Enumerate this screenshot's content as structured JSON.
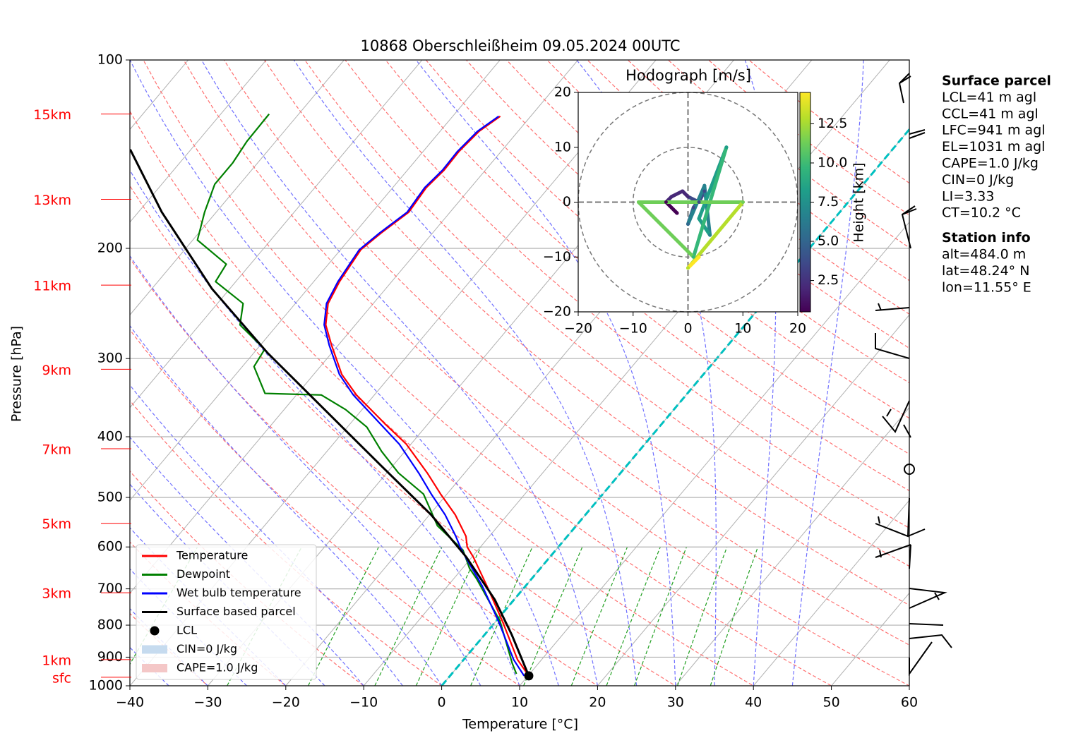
{
  "chart_data": [
    {
      "type": "skewt",
      "title": "10868 Oberschleißheim 09.05.2024 00UTC",
      "xlabel": "Temperature [°C]",
      "ylabel": "Pressure [hPa]",
      "xlim": [
        -40,
        60
      ],
      "ylim": [
        1000,
        100
      ],
      "ylog": true,
      "grid": true,
      "xticks": [
        {
          "value": -40,
          "label": "−40"
        },
        {
          "value": -30,
          "label": "−30"
        },
        {
          "value": -20,
          "label": "−20"
        },
        {
          "value": -10,
          "label": "−10"
        },
        0,
        10,
        20,
        30,
        40,
        50,
        60
      ],
      "yticks": [
        100,
        200,
        300,
        400,
        500,
        600,
        700,
        800,
        900,
        1000
      ],
      "height_labels": [
        {
          "value": 122,
          "label": "15km"
        },
        {
          "value": 167,
          "label": "13km"
        },
        {
          "value": 229,
          "label": "11km"
        },
        {
          "value": 312,
          "label": "9km"
        },
        {
          "value": 418,
          "label": "7km"
        },
        {
          "value": 550,
          "label": "5km"
        },
        {
          "value": 710,
          "label": "3km"
        },
        {
          "value": 908,
          "label": "1km"
        },
        {
          "value": 969,
          "label": "sfc"
        }
      ],
      "height_label_color": "#ff0000",
      "series": [
        {
          "name": "Temperature",
          "color": "#ff0000",
          "x": [
            10.1,
            6.9,
            0.8,
            -5.0,
            -9.8,
            -11.7,
            -13.0,
            -16.7,
            -20.8,
            -24.8,
            -30.6,
            -35.6,
            -42.3,
            -46.4,
            -50.8,
            -53.8,
            -55.8,
            -56.7,
            -57.4,
            -56.6,
            -55.3,
            -55.7,
            -55.3,
            -55.4,
            -55.0,
            -53.9
          ],
          "y": [
            964,
            908,
            788,
            692,
            623,
            600,
            577,
            533,
            494,
            457,
            411,
            381,
            343,
            318,
            286,
            265,
            245,
            226,
            201,
            189,
            175,
            160,
            150,
            140,
            130,
            123
          ]
        },
        {
          "name": "Dewpoint",
          "color": "#008000",
          "x": [
            8.3,
            6.6,
            0.5,
            -7.1,
            -9.1,
            -11.9,
            -17.8,
            -23.0,
            -28.5,
            -33.0,
            -37.5,
            -42.1,
            -46.8,
            -54.2,
            -58.5,
            -59.0,
            -64.8,
            -66.7,
            -72.6,
            -73.1,
            -79.4,
            -81.5,
            -83.2,
            -83.2,
            -83.7,
            -83.8
          ],
          "y": [
            957,
            920,
            788,
            674,
            649,
            607,
            555,
            494,
            457,
            422,
            386,
            362,
            343,
            341,
            309,
            290,
            265,
            245,
            226,
            212,
            194,
            175,
            158,
            146,
            135,
            122
          ]
        },
        {
          "name": "Wet bulb temperature",
          "color": "#0000ff",
          "x": [
            9.5,
            6.4,
            0.3,
            -5.6,
            -10.8,
            -12.6,
            -14.3,
            -18.0,
            -22.0,
            -25.9,
            -31.5,
            -36.2,
            -42.7,
            -46.7,
            -51.1,
            -54.0,
            -56.0,
            -56.9,
            -57.6,
            -56.8,
            -55.5,
            -55.9,
            -55.5,
            -55.6,
            -55.2,
            -54.1
          ],
          "y": [
            964,
            908,
            788,
            692,
            623,
            600,
            577,
            533,
            494,
            457,
            411,
            381,
            343,
            318,
            286,
            265,
            245,
            226,
            201,
            189,
            175,
            160,
            150,
            140,
            130,
            123
          ]
        },
        {
          "name": "Surface based parcel",
          "color": "#000000",
          "x": [
            10.1,
            3.5,
            -2.5,
            -10.7,
            -19.8,
            -31.5,
            -44.8,
            -58.2,
            -72.3,
            -87.0,
            -97.8
          ],
          "y": [
            964,
            829,
            728,
            623,
            533,
            445,
            362,
            294,
            232,
            175,
            139
          ]
        }
      ],
      "points": [
        {
          "name": "LCL",
          "color": "#000000",
          "x": [
            10.1
          ],
          "y": [
            964
          ]
        }
      ],
      "shading": [
        {
          "name": "CIN=0 J/kg",
          "color": "#c6dbef"
        },
        {
          "name": "CAPE=1.0 J/kg",
          "color": "#f4c7c7"
        }
      ],
      "info": [
        {
          "title": "Surface parcel",
          "lines": [
            "LCL=41 m agl",
            "CCL=41 m agl",
            "LFC=941 m agl",
            "EL=1031 m agl",
            "CAPE=1.0 J/kg",
            "CIN=0 J/kg",
            "LI=3.33",
            "CT=10.2 °C"
          ]
        },
        {
          "title": "Station info",
          "lines": [
            "alt=484.0 m",
            "lat=48.24° N",
            "lon=11.55° E"
          ]
        }
      ]
    },
    {
      "type": "hodograph",
      "title": "Hodograph [m/s]",
      "colorbar_label": "Height [km]",
      "xlim": [
        -20,
        20
      ],
      "ylim": [
        -20,
        20
      ],
      "xticks": [
        {
          "value": -20,
          "label": "−20"
        },
        {
          "value": -10,
          "label": "−10"
        },
        0,
        10,
        20
      ],
      "yticks": [
        {
          "value": -20,
          "label": "−20"
        },
        {
          "value": -10,
          "label": "−10"
        },
        0,
        10,
        20
      ],
      "clim": [
        0.5,
        14.5
      ],
      "cticks": [
        2.5,
        {
          "value": 5,
          "label": "5.0"
        },
        7.5,
        {
          "value": 10,
          "label": "10.0"
        },
        12.5
      ],
      "x": [
        -2,
        -4,
        -3,
        -1,
        0,
        2,
        3,
        1,
        0,
        3,
        4,
        2,
        7,
        1,
        -9,
        10,
        0,
        2
      ],
      "values": [
        -2,
        0,
        1,
        2,
        1,
        0,
        2,
        -1,
        -4,
        3,
        -6,
        -3,
        10,
        -10,
        0,
        0,
        -12,
        -10
      ],
      "heights": [
        0.5,
        1,
        1.5,
        2,
        2.5,
        3,
        3.5,
        4,
        5,
        6,
        7,
        8,
        9,
        10,
        11,
        12,
        13,
        14
      ]
    }
  ]
}
